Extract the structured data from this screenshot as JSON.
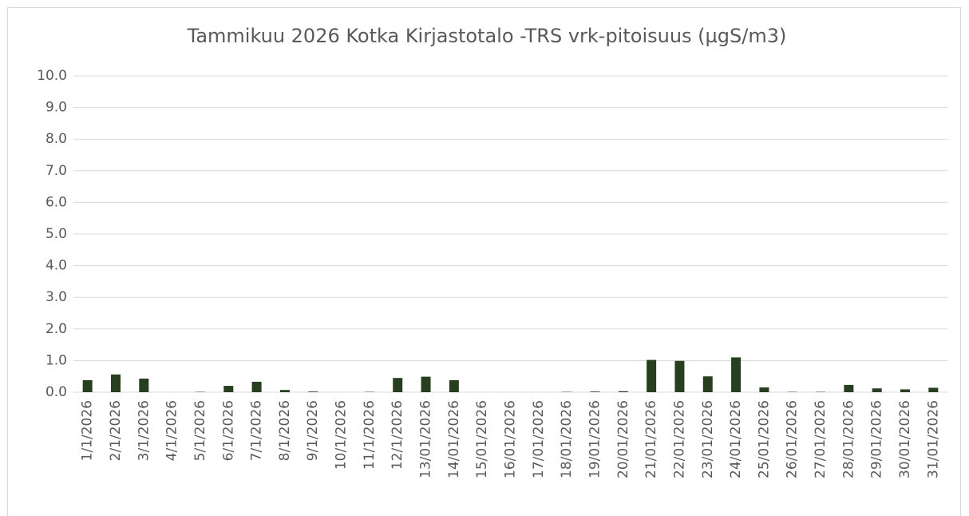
{
  "chart_data": {
    "type": "bar",
    "title": "Tammikuu 2026 Kotka Kirjastotalo -TRS vrk-pitoisuus (µgS/m3)",
    "categories": [
      "1/1/2026",
      "2/1/2026",
      "3/1/2026",
      "4/1/2026",
      "5/1/2026",
      "6/1/2026",
      "7/1/2026",
      "8/1/2026",
      "9/1/2026",
      "10/1/2026",
      "11/1/2026",
      "12/1/2026",
      "13/01/2026",
      "14/01/2026",
      "15/01/2026",
      "16/01/2026",
      "17/01/2026",
      "18/01/2026",
      "19/01/2026",
      "20/01/2026",
      "21/01/2026",
      "22/01/2026",
      "23/01/2026",
      "24/01/2026",
      "25/01/2026",
      "26/01/2026",
      "27/01/2026",
      "28/01/2026",
      "29/01/2026",
      "30/01/2026",
      "31/01/2026"
    ],
    "values": [
      0.38,
      0.56,
      0.43,
      0,
      0.01,
      0.2,
      0.33,
      0.07,
      0.02,
      0,
      0.01,
      0.45,
      0.49,
      0.38,
      0,
      0,
      0,
      0.01,
      0.02,
      0.03,
      1.02,
      0.99,
      0.5,
      1.1,
      0.15,
      0.01,
      0.01,
      0.23,
      0.12,
      0.09,
      0.14
    ],
    "color": "#263f1f",
    "ylim": [
      0,
      10
    ],
    "yticks": [
      {
        "value": 0,
        "label": "0.0"
      },
      {
        "value": 1,
        "label": "1.0"
      },
      {
        "value": 2,
        "label": "2.0"
      },
      {
        "value": 3,
        "label": "3.0"
      },
      {
        "value": 4,
        "label": "4.0"
      },
      {
        "value": 5,
        "label": "5.0"
      },
      {
        "value": 6,
        "label": "6.0"
      },
      {
        "value": 7,
        "label": "7.0"
      },
      {
        "value": 8,
        "label": "8.0"
      },
      {
        "value": 9,
        "label": "9.0"
      },
      {
        "value": 10,
        "label": "10.0"
      }
    ],
    "grid": true
  }
}
